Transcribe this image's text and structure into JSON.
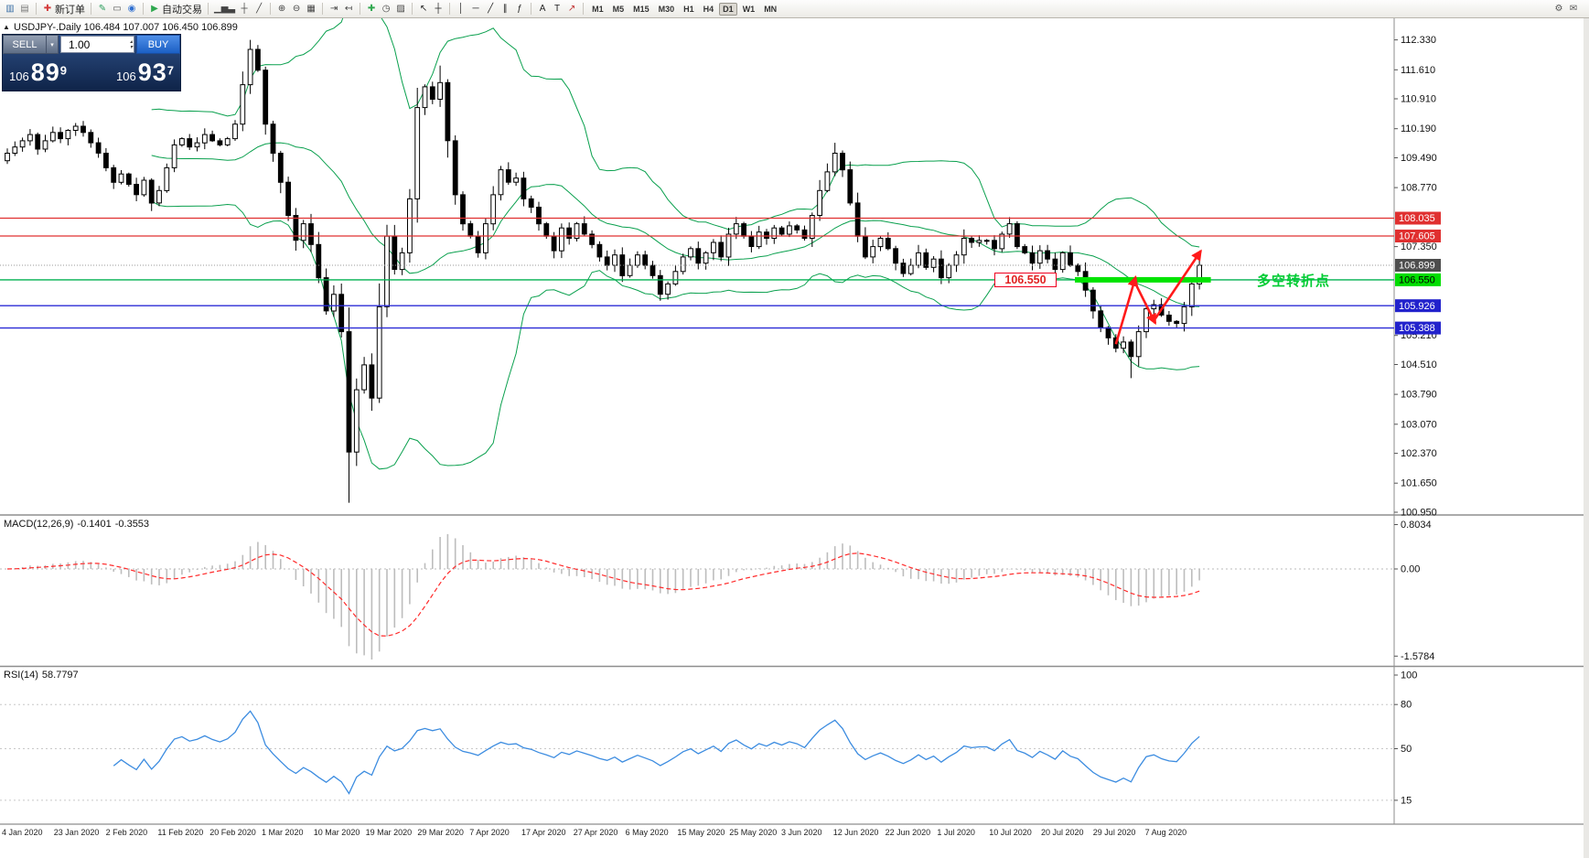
{
  "toolbar": {
    "groups": [
      {
        "items": [
          {
            "name": "new-chart-icon",
            "glyph": "▥",
            "color": "#3a6ea5"
          },
          {
            "name": "chart-profiles-icon",
            "glyph": "▤",
            "color": "#7a7a7a"
          }
        ]
      },
      {
        "items": [
          {
            "name": "new-order-button",
            "glyph": "✚",
            "color": "#d43b3b",
            "label": "新订单"
          }
        ]
      },
      {
        "items": [
          {
            "name": "chart-styler-icon",
            "glyph": "✎",
            "color": "#2a9d5c"
          },
          {
            "name": "chart-window-icon",
            "glyph": "▭",
            "color": "#555555"
          },
          {
            "name": "webtrader-icon",
            "glyph": "◉",
            "color": "#2f6fd0"
          }
        ]
      },
      {
        "items": [
          {
            "name": "auto-trading-button",
            "glyph": "▶",
            "color": "#2fa84f",
            "label": "自动交易"
          }
        ]
      },
      {
        "items": [
          {
            "name": "bar-chart-icon",
            "glyph": "▁▅▃",
            "color": "#444444"
          },
          {
            "name": "candlestick-chart-icon",
            "glyph": "┼",
            "color": "#444444"
          },
          {
            "name": "line-chart-icon",
            "glyph": "╱",
            "color": "#444444"
          }
        ]
      },
      {
        "items": [
          {
            "name": "zoom-in-icon",
            "glyph": "⊕",
            "color": "#444444"
          },
          {
            "name": "zoom-out-icon",
            "glyph": "⊖",
            "color": "#444444"
          },
          {
            "name": "tile-windows-icon",
            "glyph": "▦",
            "color": "#444444"
          }
        ]
      },
      {
        "items": [
          {
            "name": "auto-scroll-icon",
            "glyph": "⇥",
            "color": "#444444"
          },
          {
            "name": "chart-shift-icon",
            "glyph": "↤",
            "color": "#444444"
          }
        ]
      },
      {
        "items": [
          {
            "name": "add-indicator-icon",
            "glyph": "✚",
            "color": "#2fa84f"
          },
          {
            "name": "periods-icon",
            "glyph": "◷",
            "color": "#444444"
          },
          {
            "name": "templates-icon",
            "glyph": "▨",
            "color": "#444444"
          }
        ]
      },
      {
        "items": [
          {
            "name": "cursor-icon",
            "glyph": "↖",
            "color": "#222222"
          },
          {
            "name": "crosshair-icon",
            "glyph": "┼",
            "color": "#222222"
          }
        ]
      },
      {
        "items": [
          {
            "name": "vertical-line-icon",
            "glyph": "│",
            "color": "#222222"
          },
          {
            "name": "horizontal-line-icon",
            "glyph": "─",
            "color": "#222222"
          },
          {
            "name": "trendline-icon",
            "glyph": "╱",
            "color": "#222222"
          },
          {
            "name": "channel-icon",
            "glyph": "∥",
            "color": "#222222"
          },
          {
            "name": "fibonacci-icon",
            "glyph": "ƒ",
            "color": "#222222"
          }
        ]
      },
      {
        "items": [
          {
            "name": "text-icon",
            "glyph": "A",
            "color": "#222222"
          },
          {
            "name": "text-label-icon",
            "glyph": "T",
            "color": "#222222"
          },
          {
            "name": "shapes-icon",
            "glyph": "↗",
            "color": "#c03030"
          }
        ]
      }
    ],
    "timeframes": [
      "M1",
      "M5",
      "M15",
      "M30",
      "H1",
      "H4",
      "D1",
      "W1",
      "MN"
    ],
    "active_timeframe": "D1",
    "right_icons": [
      {
        "name": "settings-icon",
        "glyph": "⚙",
        "color": "#555555"
      },
      {
        "name": "messages-icon",
        "glyph": "✉",
        "color": "#555555"
      }
    ]
  },
  "chart": {
    "info_line": "USDJPY-.Daily 106.484 107.007 106.450 106.899",
    "symbol": "USDJPY-",
    "period": "Daily",
    "ohlc": {
      "open": "106.484",
      "high": "107.007",
      "low": "106.450",
      "close": "106.899"
    }
  },
  "glyphs": {
    "panel_toggle": "▲",
    "dropdown": "▾",
    "spin_up": "▴",
    "spin_down": "▾"
  },
  "trade_panel": {
    "sell_label": "SELL",
    "buy_label": "BUY",
    "volume": "1.00",
    "sell_price_main": "106",
    "sell_price_pips": "89",
    "sell_price_pipette": "9",
    "buy_price_main": "106",
    "buy_price_pips": "93",
    "buy_price_pipette": "7"
  },
  "annotations": {
    "level_tag": "106.550",
    "turning_point_text": "多空转折点",
    "hlines": [
      {
        "price": 108.035,
        "color": "#e03030",
        "width": 1.2
      },
      {
        "price": 107.605,
        "color": "#e03030",
        "width": 1.2
      },
      {
        "price": 106.899,
        "color": "#9a9a9a",
        "width": 1,
        "dash": "1 2"
      },
      {
        "price": 106.55,
        "color": "#00b050",
        "width": 1.4
      },
      {
        "price": 105.926,
        "color": "#2b2bd6",
        "width": 1.4
      },
      {
        "price": 105.388,
        "color": "#2b2bd6",
        "width": 1.4
      }
    ],
    "green_segment": {
      "price": 106.55,
      "from_index": 140.6,
      "to_index": 158.5,
      "color": "#00e400",
      "thickness": 6
    },
    "arrows": [
      {
        "from": [
          146,
          105.0
        ],
        "to": [
          148.6,
          106.62
        ]
      },
      {
        "from": [
          148.6,
          106.45
        ],
        "to": [
          151.2,
          105.5
        ]
      },
      {
        "from": [
          151.2,
          105.62
        ],
        "to": [
          157.2,
          107.25
        ]
      }
    ]
  },
  "price_axis": {
    "ticks": [
      {
        "text": "112.330",
        "value": 112.33
      },
      {
        "text": "111.610",
        "value": 111.61
      },
      {
        "text": "110.910",
        "value": 110.91
      },
      {
        "text": "110.190",
        "value": 110.19
      },
      {
        "text": "109.490",
        "value": 109.49
      },
      {
        "text": "108.770",
        "value": 108.77
      },
      {
        "text": "107.350",
        "value": 107.35
      },
      {
        "text": "105.210",
        "value": 105.21
      },
      {
        "text": "104.510",
        "value": 104.51
      },
      {
        "text": "103.790",
        "value": 103.79
      },
      {
        "text": "103.070",
        "value": 103.07
      },
      {
        "text": "102.370",
        "value": 102.37
      },
      {
        "text": "101.650",
        "value": 101.65
      },
      {
        "text": "100.950",
        "value": 100.95
      }
    ],
    "special": [
      {
        "label": "108.035",
        "value": 108.035,
        "bg": "#e03030",
        "fg": "#ffffff"
      },
      {
        "label": "107.605",
        "value": 107.605,
        "bg": "#e03030",
        "fg": "#ffffff"
      },
      {
        "label": "106.899",
        "value": 106.899,
        "bg": "#4d4d4d",
        "fg": "#ffffff"
      },
      {
        "label": "106.550",
        "value": 106.55,
        "bg": "#00dd00",
        "fg": "#000000"
      },
      {
        "label": "105.926",
        "value": 105.926,
        "bg": "#2222cc",
        "fg": "#ffffff"
      },
      {
        "label": "105.388",
        "value": 105.388,
        "bg": "#2222cc",
        "fg": "#ffffff"
      }
    ]
  },
  "macd": {
    "name": "MACD(12,26,9)",
    "value_main": "-0.1401",
    "value_signal": "-0.3553",
    "axis_labels": [
      {
        "text": "0.8034",
        "value": 0.8034
      },
      {
        "text": "0.00",
        "value": 0
      },
      {
        "text": "-1.5784",
        "value": -1.5784
      }
    ]
  },
  "rsi": {
    "name": "RSI(14)",
    "value": "58.7797",
    "axis_labels": [
      {
        "text": "100",
        "value": 100
      },
      {
        "text": "80",
        "value": 80
      },
      {
        "text": "50",
        "value": 50
      },
      {
        "text": "15",
        "value": 15
      }
    ],
    "levels": [
      80,
      50,
      15
    ]
  },
  "dates": [
    "4 Jan 2020",
    "23 Jan 2020",
    "2 Feb 2020",
    "11 Feb 2020",
    "20 Feb 2020",
    "1 Mar 2020",
    "10 Mar 2020",
    "19 Mar 2020",
    "29 Mar 2020",
    "7 Apr 2020",
    "17 Apr 2020",
    "27 Apr 2020",
    "6 May 2020",
    "15 May 2020",
    "25 May 2020",
    "3 Jun 2020",
    "12 Jun 2020",
    "22 Jun 2020",
    "1 Jul 2020",
    "10 Jul 2020",
    "20 Jul 2020",
    "29 Jul 2020",
    "7 Aug 2020"
  ],
  "colors": {
    "bull": "#ffffff",
    "bear": "#000000",
    "bollinger": "#0aa04e",
    "macd_histogram": "#bdbdbd",
    "macd_signal": "#ff2a2a",
    "rsi_line": "#3c8ce0",
    "arrow_red": "#ff1a1a",
    "level_red": "#e03030",
    "level_blue": "#2b2bd6",
    "level_green": "#00b050",
    "turning_green": "#00cc33",
    "buy_blue": "#1f6fe0"
  },
  "chart_data": {
    "type": "candlestick",
    "symbol": "USDJPY",
    "timeframe": "Daily",
    "ylim": [
      100.95,
      112.85
    ],
    "bollinger": {
      "period": 20,
      "deviation": 2
    },
    "macd_params": [
      12,
      26,
      9
    ],
    "rsi_period": 14,
    "closes": [
      109.6,
      109.75,
      109.9,
      110.05,
      109.7,
      109.9,
      110.1,
      109.95,
      110.15,
      110.25,
      110.1,
      109.85,
      109.6,
      109.25,
      108.9,
      109.1,
      108.85,
      108.6,
      108.95,
      108.4,
      108.7,
      109.25,
      109.8,
      109.95,
      109.75,
      109.85,
      110.05,
      109.9,
      109.8,
      109.95,
      110.3,
      111.25,
      112.1,
      111.6,
      110.3,
      109.6,
      108.9,
      108.1,
      107.5,
      107.9,
      107.4,
      106.6,
      105.8,
      106.2,
      105.3,
      102.4,
      103.9,
      104.5,
      103.7,
      105.9,
      107.6,
      106.8,
      107.2,
      108.5,
      110.7,
      111.2,
      110.9,
      111.3,
      109.9,
      108.6,
      107.9,
      107.6,
      107.2,
      107.9,
      108.6,
      109.2,
      108.9,
      109.0,
      108.5,
      108.3,
      107.9,
      107.6,
      107.25,
      107.8,
      107.55,
      107.9,
      107.65,
      107.4,
      107.1,
      106.9,
      107.15,
      106.65,
      106.9,
      107.15,
      106.9,
      106.65,
      106.2,
      106.45,
      106.75,
      107.1,
      107.3,
      106.95,
      107.2,
      107.45,
      107.1,
      107.65,
      107.9,
      107.6,
      107.35,
      107.7,
      107.55,
      107.8,
      107.65,
      107.85,
      107.75,
      107.55,
      108.1,
      108.7,
      109.15,
      109.6,
      109.2,
      108.4,
      107.6,
      107.1,
      107.35,
      107.55,
      107.3,
      106.95,
      106.7,
      106.9,
      107.2,
      106.85,
      107.05,
      106.6,
      106.9,
      107.15,
      107.55,
      107.45,
      107.5,
      107.5,
      107.3,
      107.65,
      107.9,
      107.35,
      107.2,
      106.95,
      107.25,
      107.05,
      106.8,
      107.2,
      106.9,
      106.75,
      106.3,
      105.8,
      105.4,
      105.15,
      104.9,
      105.05,
      104.7,
      105.3,
      105.85,
      105.95,
      105.7,
      105.55,
      105.5,
      105.9,
      106.45,
      106.9
    ],
    "wick_overrides": {
      "32": {
        "high": 112.33
      },
      "45": {
        "low": 101.18
      },
      "57": {
        "high": 111.71
      },
      "109": {
        "high": 109.85
      },
      "148": {
        "low": 104.18
      }
    }
  }
}
